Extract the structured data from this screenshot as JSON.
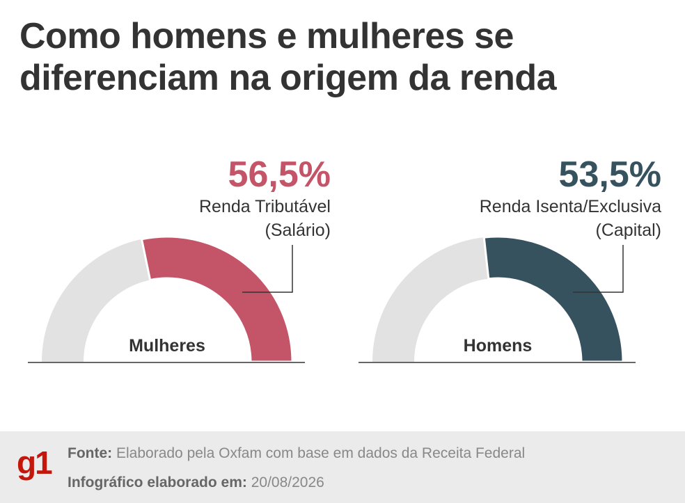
{
  "title": "Como homens e mulheres se diferenciam na origem da renda",
  "chart_data": [
    {
      "type": "gauge",
      "category": "Mulheres",
      "label_lines": [
        "Renda Tributável",
        "(Salário)"
      ],
      "values": [
        56.5
      ],
      "value_labels": [
        "56,5%"
      ],
      "color": "#c45468",
      "ylim": [
        0,
        100
      ]
    },
    {
      "type": "gauge",
      "category": "Homens",
      "label_lines": [
        "Renda Isenta/Exclusiva",
        "(Capital)"
      ],
      "values": [
        53.5
      ],
      "value_labels": [
        "53,5%"
      ],
      "color": "#37525f",
      "ylim": [
        0,
        100
      ]
    }
  ],
  "footer": {
    "logo": "g1",
    "source_label": "Fonte:",
    "source": "Elaborado pela Oxfam com base em dados da Receita Federal",
    "date_label": "Infográfico elaborado em:",
    "date": "20/08/2026"
  }
}
